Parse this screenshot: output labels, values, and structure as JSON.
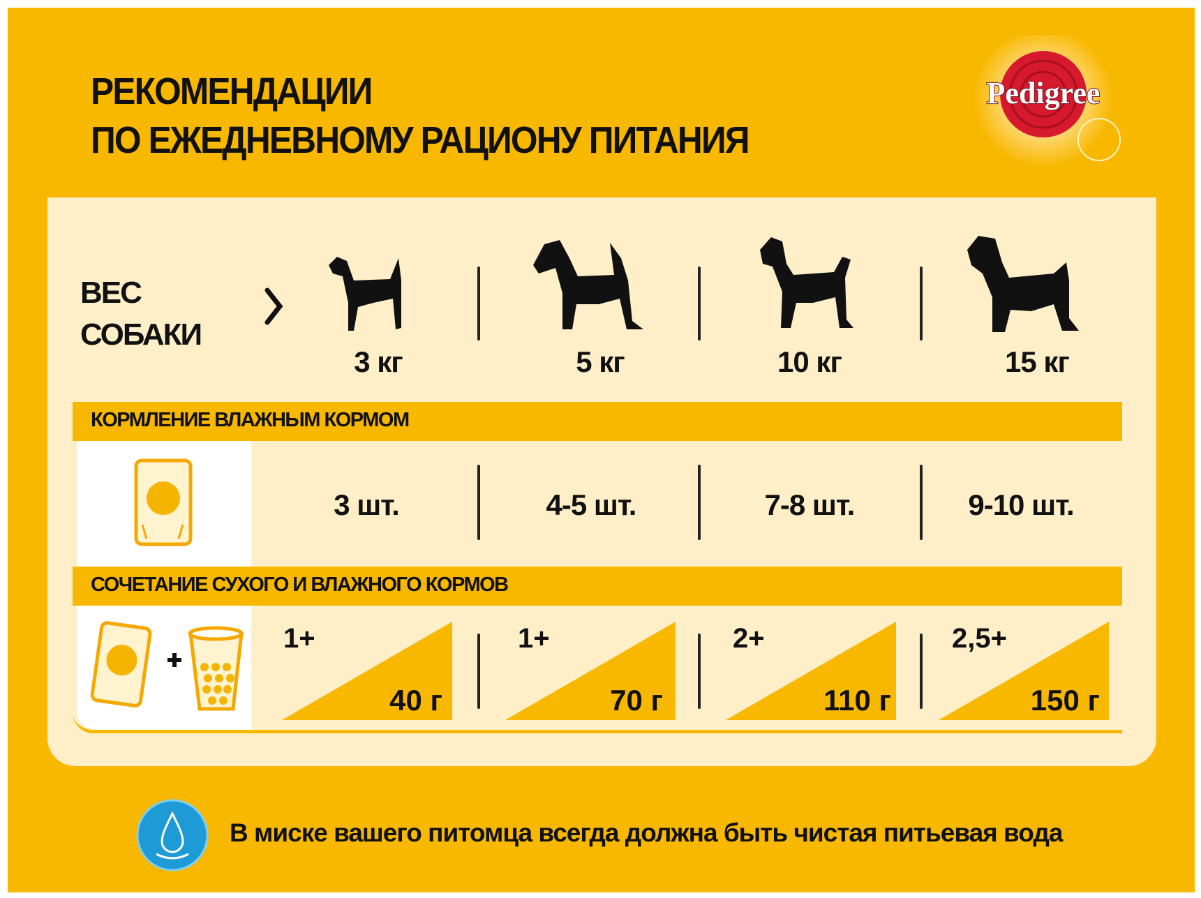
{
  "title": {
    "line1": "РЕКОМЕНДАЦИИ",
    "line2": "ПО ЕЖЕДНЕВНОМУ РАЦИОНУ ПИТАНИЯ"
  },
  "logo": {
    "text": "Pedigree",
    "color": "#D7192E"
  },
  "weight_label": {
    "line1": "ВЕС",
    "line2": "СОБАКИ"
  },
  "weights": [
    "3 кг",
    "5 кг",
    "10 кг",
    "15 кг"
  ],
  "wet_feeding": {
    "header": "КОРМЛЕНИЕ ВЛАЖНЫМ КОРМОМ",
    "icon": "pouch-icon",
    "values": [
      "3 шт.",
      "4-5 шт.",
      "7-8 шт.",
      "9-10 шт."
    ]
  },
  "combined_feeding": {
    "header": "СОЧЕТАНИЕ СУХОГО И ВЛАЖНОГО КОРМОВ",
    "icon": "pouch-plus-cup-icon",
    "pouches": [
      "1+",
      "1+",
      "2+",
      "2,5+"
    ],
    "dry_grams": [
      "40 г",
      "70 г",
      "110 г",
      "150 г"
    ]
  },
  "water_note": "В миске вашего питомца всегда должна быть чистая питьевая вода",
  "colors": {
    "yellow": "#F9B800",
    "cream": "#FEEFC9",
    "water_blue": "#1E9AD6"
  }
}
